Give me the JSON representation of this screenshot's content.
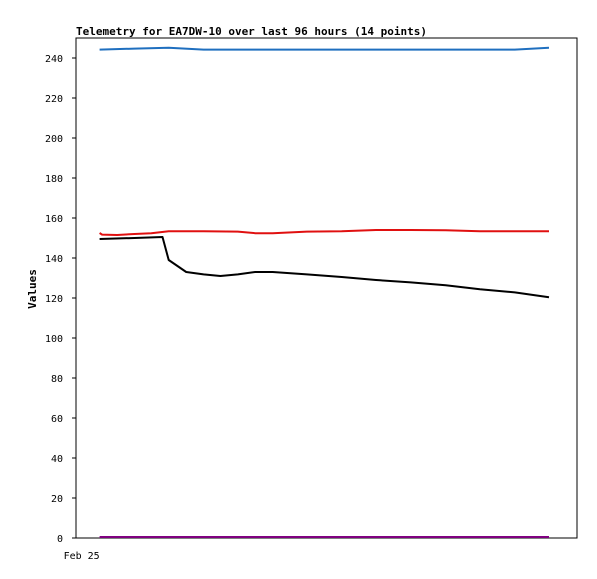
{
  "chart_data": {
    "type": "line",
    "title": "Telemetry for EA7DW-10 over last 96 hours (14 points)",
    "xlabel": "",
    "ylabel": "Values",
    "ylim": [
      0,
      250
    ],
    "y_ticks": [
      0,
      20,
      40,
      60,
      80,
      100,
      120,
      140,
      160,
      180,
      200,
      220,
      240
    ],
    "x_tick_labels": [
      {
        "label": "Feb 25",
        "x": 0
      }
    ],
    "x_range": [
      -3.8,
      76.7
    ],
    "grid": false,
    "legend": "none",
    "series": [
      {
        "color": "#1f6fbf",
        "points": [
          [
            0,
            244.2
          ],
          [
            5.6,
            244.7
          ],
          [
            11.1,
            245.1
          ],
          [
            16.7,
            244.2
          ],
          [
            22.2,
            244.2
          ],
          [
            27.8,
            244.2
          ],
          [
            33.3,
            244.2
          ],
          [
            38.9,
            244.2
          ],
          [
            44.4,
            244.2
          ],
          [
            50,
            244.2
          ],
          [
            55.6,
            244.2
          ],
          [
            61.1,
            244.2
          ],
          [
            66.7,
            244.2
          ],
          [
            72.2,
            245.1
          ]
        ]
      },
      {
        "color": "#e01010",
        "points": [
          [
            0,
            152.5
          ],
          [
            0.4,
            151.7
          ],
          [
            2.8,
            151.5
          ],
          [
            5.6,
            152
          ],
          [
            8.3,
            152.4
          ],
          [
            11.1,
            153.4
          ],
          [
            16.7,
            153.4
          ],
          [
            22.2,
            153.2
          ],
          [
            25,
            152.4
          ],
          [
            27.8,
            152.4
          ],
          [
            33.3,
            153.2
          ],
          [
            38.9,
            153.4
          ],
          [
            44.4,
            154
          ],
          [
            50,
            154
          ],
          [
            55.6,
            153.9
          ],
          [
            61.1,
            153.4
          ],
          [
            66.7,
            153.4
          ],
          [
            72.2,
            153.4
          ]
        ]
      },
      {
        "color": "#000000",
        "points": [
          [
            0,
            149.5
          ],
          [
            5.6,
            150
          ],
          [
            10.1,
            150.5
          ],
          [
            11.1,
            139
          ],
          [
            13.9,
            133
          ],
          [
            16.7,
            131.8
          ],
          [
            19.4,
            131
          ],
          [
            22.2,
            131.8
          ],
          [
            25,
            133
          ],
          [
            27.8,
            133
          ],
          [
            33.3,
            131.8
          ],
          [
            38.9,
            130.5
          ],
          [
            44.4,
            129
          ],
          [
            50,
            127.8
          ],
          [
            55.6,
            126.4
          ],
          [
            61.1,
            124.4
          ],
          [
            66.7,
            122.8
          ],
          [
            72.2,
            120.4
          ]
        ]
      },
      {
        "color": "#800080",
        "points": [
          [
            0,
            0.5
          ],
          [
            72.2,
            0.5
          ]
        ]
      }
    ]
  }
}
